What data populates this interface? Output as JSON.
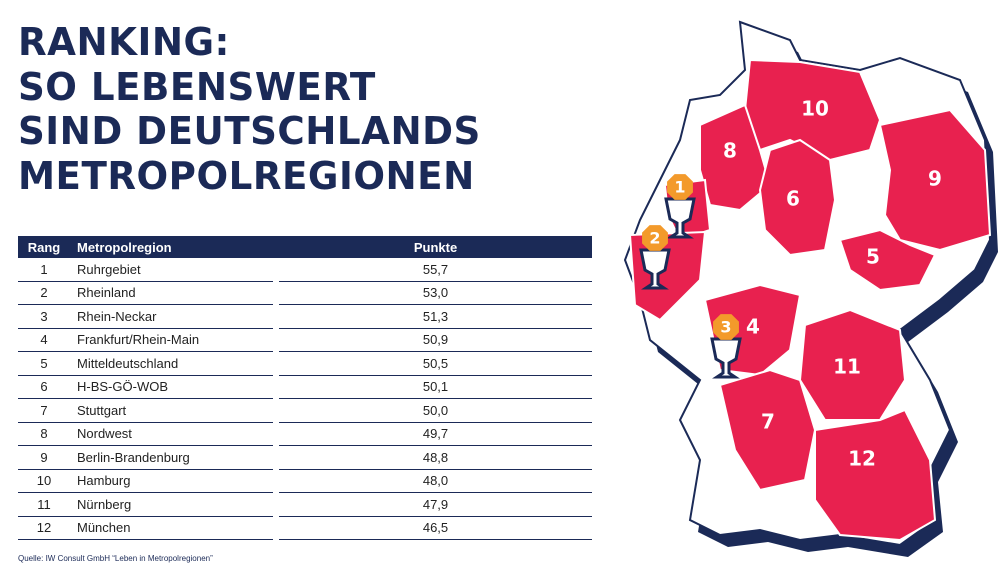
{
  "header": {
    "title": [
      "RANKING:",
      "SO LEBENSWERT",
      "SIND DEUTSCHLANDS",
      "METROPOLREGIONEN"
    ]
  },
  "table": {
    "columns": [
      "Rang",
      "Metropolregion",
      "Punkte"
    ],
    "rows": [
      [
        "1",
        "Ruhrgebiet",
        "55,7"
      ],
      [
        "2",
        "Rheinland",
        "53,0"
      ],
      [
        "3",
        "Rhein-Neckar",
        "51,3"
      ],
      [
        "4",
        "Frankfurt/Rhein-Main",
        "50,9"
      ],
      [
        "5",
        "Mitteldeutschland",
        "50,5"
      ],
      [
        "6",
        "H-BS-GÖ-WOB",
        "50,1"
      ],
      [
        "7",
        "Stuttgart",
        "50,0"
      ],
      [
        "8",
        "Nordwest",
        "49,7"
      ],
      [
        "9",
        "Berlin-Brandenburg",
        "48,8"
      ],
      [
        "10",
        "Hamburg",
        "48,0"
      ],
      [
        "11",
        "Nürnberg",
        "47,9"
      ],
      [
        "12",
        "München",
        "46,5"
      ]
    ]
  },
  "source": "Quelle: IW Consult GmbH “Leben in Metropolregionen”",
  "map": {
    "regions": [
      "10",
      "8",
      "6",
      "9",
      "5",
      "4",
      "11",
      "7",
      "12"
    ],
    "trophies": [
      "1",
      "2",
      "3"
    ]
  }
}
